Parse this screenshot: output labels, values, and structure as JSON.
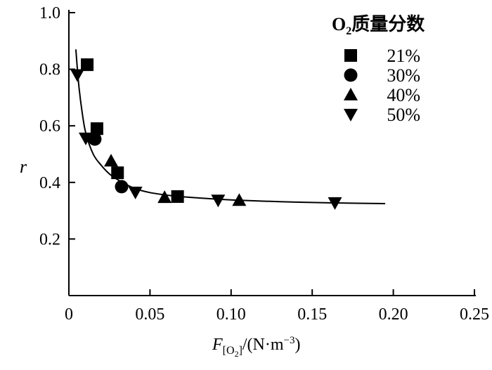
{
  "chart_data": {
    "type": "scatter",
    "xlabel": "F[O2]/(N·m−3)",
    "xlabel_parts": {
      "main": "F",
      "sub": "[O",
      "sub2": "2",
      "close": "]",
      "unit": "/(N·m",
      "sup": "−3",
      ")": ")"
    },
    "ylabel": "r",
    "xlim": [
      0,
      0.25
    ],
    "ylim": [
      0,
      1.0
    ],
    "xticks": [
      "0",
      "0.05",
      "0.10",
      "0.15",
      "0.20",
      "0.25"
    ],
    "xtick_values": [
      0,
      0.05,
      0.1,
      0.15,
      0.2,
      0.25
    ],
    "yticks": [
      "0.2",
      "0.4",
      "0.6",
      "0.8",
      "1.0"
    ],
    "ytick_values": [
      0.2,
      0.4,
      0.6,
      0.8,
      1.0
    ],
    "legend": {
      "title_main": "O",
      "title_sub": "2",
      "title_rest": "质量分数",
      "placement": "top-right"
    },
    "series": [
      {
        "name": "21%",
        "marker": "square",
        "points": [
          [
            0.0113,
            0.816
          ],
          [
            0.0173,
            0.59
          ],
          [
            0.03,
            0.434
          ],
          [
            0.067,
            0.35
          ]
        ]
      },
      {
        "name": "30%",
        "marker": "circle",
        "points": [
          [
            0.016,
            0.553
          ],
          [
            0.0325,
            0.385
          ]
        ]
      },
      {
        "name": "40%",
        "marker": "triangle-up",
        "points": [
          [
            0.026,
            0.476
          ],
          [
            0.059,
            0.347
          ],
          [
            0.105,
            0.337
          ]
        ]
      },
      {
        "name": "50%",
        "marker": "triangle-down",
        "points": [
          [
            0.0052,
            0.78
          ],
          [
            0.0104,
            0.556
          ],
          [
            0.041,
            0.365
          ],
          [
            0.092,
            0.337
          ],
          [
            0.164,
            0.328
          ]
        ]
      }
    ],
    "fit_curve": [
      [
        0.0043,
        0.87
      ],
      [
        0.006,
        0.75
      ],
      [
        0.008,
        0.655
      ],
      [
        0.0104,
        0.575
      ],
      [
        0.015,
        0.5
      ],
      [
        0.02,
        0.46
      ],
      [
        0.025,
        0.43
      ],
      [
        0.03,
        0.41
      ],
      [
        0.04,
        0.38
      ],
      [
        0.05,
        0.364
      ],
      [
        0.065,
        0.352
      ],
      [
        0.08,
        0.345
      ],
      [
        0.1,
        0.338
      ],
      [
        0.13,
        0.332
      ],
      [
        0.16,
        0.328
      ],
      [
        0.195,
        0.325
      ]
    ]
  }
}
